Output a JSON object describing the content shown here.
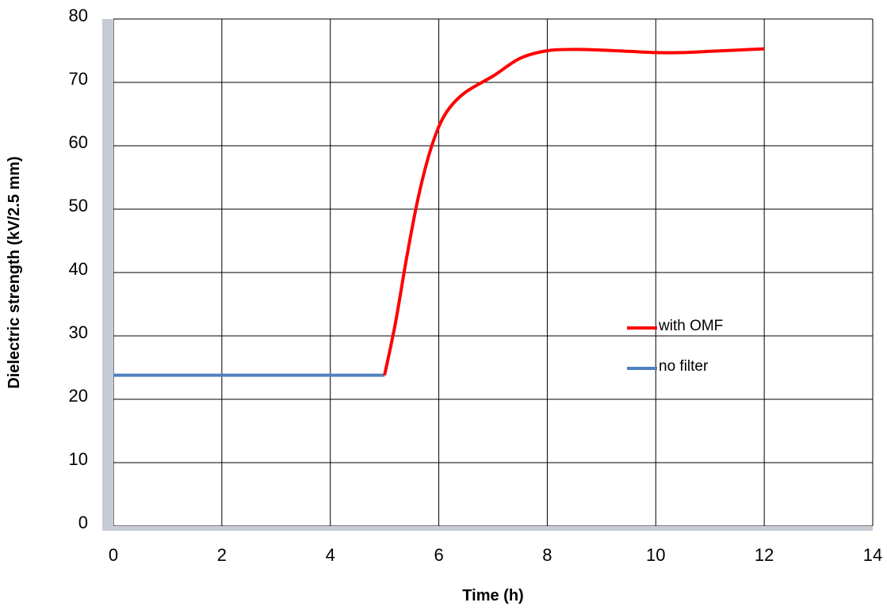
{
  "chart_data": {
    "type": "line",
    "title": "",
    "xlabel": "Time (h)",
    "ylabel": "Dielectric strength  (kV/2.5 mm)",
    "xlim": [
      0,
      14
    ],
    "ylim": [
      0,
      80
    ],
    "x_ticks": [
      0,
      2,
      4,
      6,
      8,
      10,
      12,
      14
    ],
    "y_ticks": [
      0,
      10,
      20,
      30,
      40,
      50,
      60,
      70,
      80
    ],
    "grid": true,
    "legend_position": "right-center",
    "axis_color": "#c7cbd3",
    "grid_color": "#000000",
    "series": [
      {
        "name": "no filter",
        "color": "#4f81bd",
        "x": [
          0,
          5
        ],
        "y": [
          23.8,
          23.8
        ]
      },
      {
        "name": "with OMF",
        "color": "#ff0000",
        "x": [
          5,
          5.2,
          5.4,
          5.6,
          5.8,
          6,
          6.2,
          6.5,
          7,
          7.5,
          8,
          8.5,
          9,
          9.5,
          10,
          10.5,
          11,
          11.5,
          12
        ],
        "y": [
          23.8,
          32,
          42,
          51,
          58,
          63,
          66,
          68.5,
          71,
          73.8,
          75,
          75.2,
          75.1,
          74.9,
          74.7,
          74.7,
          74.9,
          75.1,
          75.3
        ]
      }
    ]
  }
}
